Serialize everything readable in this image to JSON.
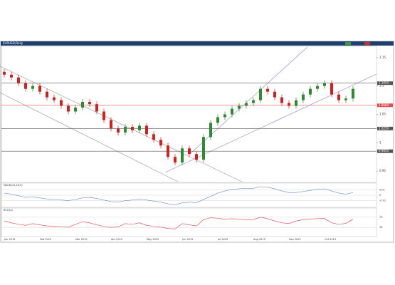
{
  "chart_data": {
    "type": "candlestick",
    "title": "EURUSD,Daily",
    "categories": [
      "Jan 2015",
      null,
      null,
      null,
      null,
      "Feb 2015",
      null,
      null,
      null,
      null,
      "Mar 2015",
      null,
      null,
      null,
      null,
      "Apr 2015",
      null,
      null,
      null,
      null,
      "May 2015",
      null,
      null,
      null,
      null,
      "Jun 2015",
      null,
      null,
      null,
      null,
      "Jul 2015",
      null,
      null,
      null,
      null,
      "Aug 2015",
      null,
      null,
      null,
      null,
      "Sep 2015",
      null,
      null,
      null,
      null,
      "Oct 2015",
      null,
      null,
      null,
      null
    ],
    "open": [
      1.125,
      1.12,
      1.115,
      1.105,
      1.095,
      1.1,
      1.09,
      1.08,
      1.075,
      1.065,
      1.055,
      1.062,
      1.072,
      1.068,
      1.055,
      1.04,
      1.025,
      1.018,
      1.028,
      1.022,
      1.03,
      1.015,
      1.005,
      0.995,
      0.975,
      0.965,
      0.99,
      0.98,
      0.97,
      1.01,
      1.035,
      1.045,
      1.05,
      1.06,
      1.065,
      1.07,
      1.075,
      1.095,
      1.09,
      1.08,
      1.07,
      1.065,
      1.075,
      1.085,
      1.095,
      1.1,
      1.105,
      1.085,
      1.075,
      1.078
    ],
    "high": [
      1.13,
      1.125,
      1.12,
      1.11,
      1.105,
      1.105,
      1.095,
      1.085,
      1.08,
      1.07,
      1.067,
      1.077,
      1.077,
      1.073,
      1.06,
      1.045,
      1.03,
      1.033,
      1.033,
      1.035,
      1.035,
      1.02,
      1.01,
      1.0,
      0.98,
      0.995,
      0.995,
      0.985,
      1.015,
      1.04,
      1.05,
      1.055,
      1.065,
      1.07,
      1.075,
      1.08,
      1.1,
      1.1,
      1.095,
      1.085,
      1.075,
      1.08,
      1.09,
      1.1,
      1.105,
      1.11,
      1.11,
      1.09,
      1.083,
      1.1
    ],
    "low": [
      1.115,
      1.11,
      1.1,
      1.09,
      1.09,
      1.085,
      1.075,
      1.07,
      1.06,
      1.05,
      1.05,
      1.057,
      1.063,
      1.05,
      1.035,
      1.02,
      1.013,
      1.013,
      1.017,
      1.017,
      1.01,
      1.0,
      0.99,
      0.97,
      0.96,
      0.96,
      0.975,
      0.965,
      0.965,
      1.005,
      1.03,
      1.04,
      1.045,
      1.055,
      1.06,
      1.065,
      1.07,
      1.085,
      1.075,
      1.065,
      1.06,
      1.06,
      1.07,
      1.08,
      1.09,
      1.095,
      1.08,
      1.07,
      1.07,
      1.073
    ],
    "close": [
      1.12,
      1.115,
      1.105,
      1.095,
      1.1,
      1.09,
      1.08,
      1.075,
      1.065,
      1.055,
      1.062,
      1.072,
      1.068,
      1.055,
      1.04,
      1.025,
      1.018,
      1.028,
      1.022,
      1.03,
      1.015,
      1.005,
      0.995,
      0.975,
      0.965,
      0.99,
      0.98,
      0.97,
      1.01,
      1.035,
      1.045,
      1.05,
      1.06,
      1.065,
      1.07,
      1.075,
      1.095,
      1.09,
      1.08,
      1.07,
      1.065,
      1.075,
      1.085,
      1.095,
      1.1,
      1.105,
      1.085,
      1.075,
      1.078,
      1.095
    ],
    "up_color": "#2e8b2e",
    "down_color": "#d02020",
    "ylim": [
      0.93,
      1.17
    ],
    "yticks": [
      0.95,
      1,
      1.05,
      1.1,
      1.15
    ],
    "levels": [
      {
        "value": 1.105,
        "label": "1.1050",
        "color": "#555555"
      },
      {
        "value": 1.066,
        "label": "1.0660",
        "color": "#e05050"
      },
      {
        "value": 1.025,
        "label": "1.0250",
        "color": "#555555"
      },
      {
        "value": 0.985,
        "label": "0.9850",
        "color": "#555555"
      }
    ],
    "macd": {
      "name": "MACD(12,26,9)",
      "color": "#4a78c8",
      "ylim": [
        -0.02,
        0.02
      ],
      "yticks": [
        -0.01,
        0,
        0.01
      ],
      "values": [
        0.004,
        0.002,
        -0.001,
        -0.004,
        -0.003,
        -0.005,
        -0.007,
        -0.008,
        -0.009,
        -0.01,
        -0.008,
        -0.005,
        -0.004,
        -0.006,
        -0.009,
        -0.012,
        -0.013,
        -0.01,
        -0.009,
        -0.007,
        -0.009,
        -0.011,
        -0.013,
        -0.016,
        -0.018,
        -0.014,
        -0.013,
        -0.014,
        -0.008,
        -0.002,
        0.004,
        0.008,
        0.011,
        0.012,
        0.013,
        0.013,
        0.016,
        0.015,
        0.012,
        0.008,
        0.005,
        0.005,
        0.007,
        0.009,
        0.011,
        0.012,
        0.008,
        0.004,
        0.002,
        0.005
      ]
    },
    "rsi": {
      "name": "RSI(14)",
      "color": "#e04040",
      "ylim": [
        0,
        100
      ],
      "yticks": [
        30,
        70
      ],
      "values": [
        55,
        48,
        42,
        38,
        45,
        40,
        36,
        35,
        33,
        31,
        42,
        52,
        48,
        40,
        34,
        30,
        32,
        45,
        42,
        48,
        38,
        34,
        31,
        26,
        24,
        45,
        40,
        36,
        60,
        68,
        66,
        62,
        64,
        62,
        60,
        61,
        70,
        64,
        55,
        48,
        45,
        55,
        60,
        63,
        64,
        65,
        48,
        42,
        46,
        62
      ]
    }
  }
}
